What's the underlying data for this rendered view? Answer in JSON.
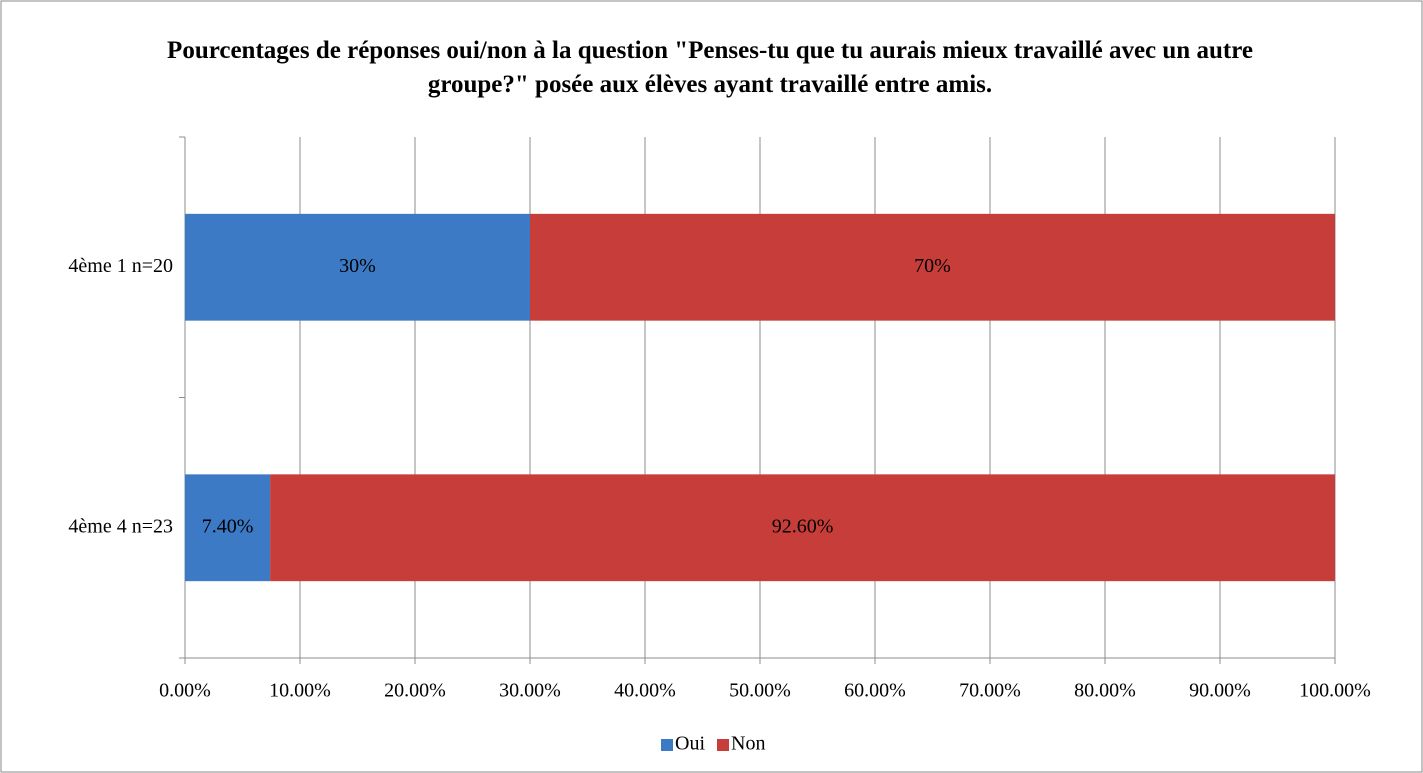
{
  "chart_data": {
    "type": "stacked-bar-horizontal",
    "title": "Pourcentages de réponses oui/non à la question \"Penses-tu que tu aurais mieux travaillé avec un autre groupe?\" posée aux élèves ayant travaillé entre amis.",
    "categories": [
      "4ème 1 n=20",
      "4ème 4 n=23"
    ],
    "series": [
      {
        "name": "Oui",
        "color": "#3c7ac6",
        "values": [
          30,
          7.4
        ],
        "value_labels": [
          "30%",
          "7.40%"
        ]
      },
      {
        "name": "Non",
        "color": "#c63d3a",
        "values": [
          70,
          92.6
        ],
        "value_labels": [
          "70%",
          "92.60%"
        ]
      }
    ],
    "xlim": [
      0,
      100
    ],
    "xticks": [
      {
        "value": 0,
        "label": "0.00%"
      },
      {
        "value": 10,
        "label": "10.00%"
      },
      {
        "value": 20,
        "label": "20.00%"
      },
      {
        "value": 30,
        "label": "30.00%"
      },
      {
        "value": 40,
        "label": "40.00%"
      },
      {
        "value": 50,
        "label": "50.00%"
      },
      {
        "value": 60,
        "label": "60.00%"
      },
      {
        "value": 70,
        "label": "70.00%"
      },
      {
        "value": 80,
        "label": "80.00%"
      },
      {
        "value": 90,
        "label": "90.00%"
      },
      {
        "value": 100,
        "label": "100.00%"
      }
    ],
    "grid": true,
    "legend": "bottom"
  }
}
